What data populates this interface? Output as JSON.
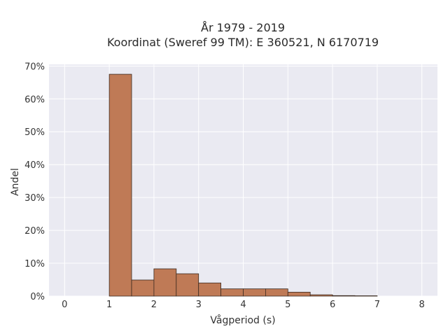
{
  "chart_data": {
    "type": "bar",
    "title_lines": [
      "År 1979 - 2019",
      "Koordinat (Sweref 99 TM): E 360521, N 6170719"
    ],
    "xlabel": "Vågperiod (s)",
    "ylabel": "Andel",
    "xlim": [
      -0.35,
      8.35
    ],
    "ylim": [
      0,
      70.5
    ],
    "x_ticks": [
      "0",
      "1",
      "2",
      "3",
      "4",
      "5",
      "6",
      "7",
      "8"
    ],
    "y_ticks": [
      "0%",
      "10%",
      "20%",
      "30%",
      "40%",
      "50%",
      "60%",
      "70%"
    ],
    "bin_edges": [
      1.0,
      1.5,
      2.0,
      2.5,
      3.0,
      3.5,
      4.0,
      4.5,
      5.0,
      5.5,
      6.0,
      6.5,
      7.0
    ],
    "values": [
      67.5,
      4.9,
      8.3,
      6.8,
      4.0,
      2.2,
      2.2,
      2.2,
      1.2,
      0.4,
      0.15,
      0.1
    ],
    "grid": true,
    "legend": "none",
    "colors": {
      "bar_fill": "#bf7a56",
      "bar_edge": "#3a2a20",
      "plot_background": "#eaeaf2",
      "grid": "#ffffff"
    }
  }
}
